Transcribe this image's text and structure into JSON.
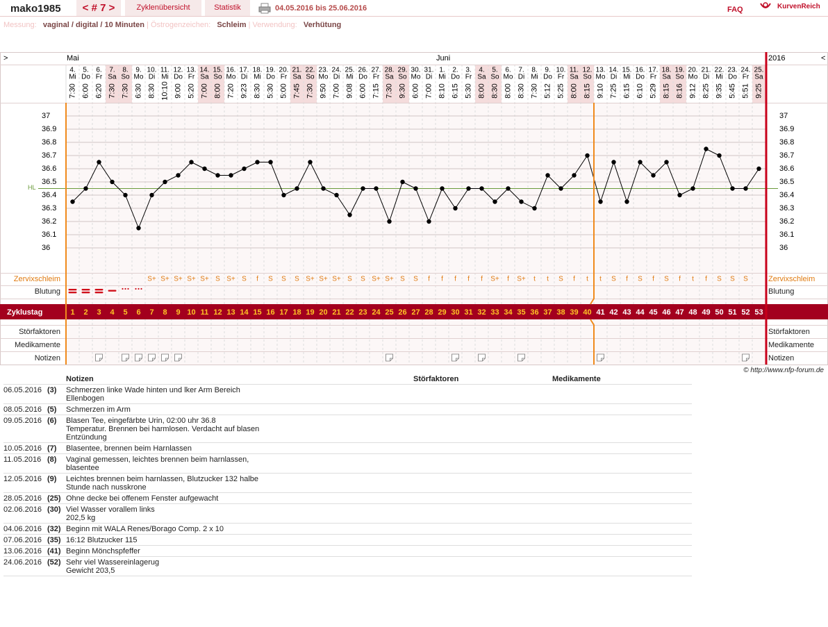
{
  "header": {
    "user": "mako1985",
    "cycle_nav": "< # 7 >",
    "tabs": [
      "Zyklenübersicht",
      "Statistik"
    ],
    "date_range": "04.05.2016 bis 25.06.2016",
    "faq": "FAQ",
    "logo": "KurvenReich"
  },
  "info": {
    "measure_label": "Messung:",
    "measure": "vaginal / digital / 10 Minuten",
    "separator": "|",
    "estrogen_label": "Östrogenzeichen:",
    "estrogen": "Schleim",
    "use_label": "Verwendung:",
    "use": "Verhütung"
  },
  "chart_data": {
    "type": "line",
    "months": [
      "Mai",
      "Juni"
    ],
    "year": "2016",
    "nav_left": ">",
    "nav_right": "<",
    "days": [
      "4.",
      "5.",
      "6.",
      "7.",
      "8.",
      "9.",
      "10.",
      "11.",
      "12.",
      "13.",
      "14.",
      "15.",
      "16.",
      "17.",
      "18.",
      "19.",
      "20.",
      "21.",
      "22.",
      "23.",
      "24.",
      "25.",
      "26.",
      "27.",
      "28.",
      "29.",
      "30.",
      "31.",
      "1.",
      "2.",
      "3.",
      "4.",
      "5.",
      "6.",
      "7.",
      "8.",
      "9.",
      "10.",
      "11.",
      "12.",
      "13.",
      "14.",
      "15.",
      "16.",
      "17.",
      "18.",
      "19.",
      "20.",
      "21.",
      "22.",
      "23.",
      "24.",
      "25."
    ],
    "weekdays": [
      "Mi",
      "Do",
      "Fr",
      "Sa",
      "So",
      "Mo",
      "Di",
      "Mi",
      "Do",
      "Fr",
      "Sa",
      "So",
      "Mo",
      "Di",
      "Mi",
      "Do",
      "Fr",
      "Sa",
      "So",
      "Mo",
      "Di",
      "Mi",
      "Do",
      "Fr",
      "Sa",
      "So",
      "Mo",
      "Di",
      "Mi",
      "Do",
      "Fr",
      "Sa",
      "So",
      "Mo",
      "Di",
      "Mi",
      "Do",
      "Fr",
      "Sa",
      "So",
      "Mo",
      "Di",
      "Mi",
      "Do",
      "Fr",
      "Sa",
      "So",
      "Mo",
      "Di",
      "Mi",
      "Do",
      "Fr",
      "Sa"
    ],
    "times": [
      "7:30",
      "6:00",
      "6:20",
      "7:30",
      "7:30",
      "6:30",
      "8:30",
      "10:10",
      "9:00",
      "5:20",
      "7:00",
      "8:00",
      "7:20",
      "9:23",
      "8:30",
      "5:30",
      "5:00",
      "7:45",
      "7:30",
      "9:50",
      "7:00",
      "9:08",
      "6:00",
      "7:15",
      "7:30",
      "9:30",
      "6:00",
      "7:00",
      "8:10",
      "6:15",
      "5:30",
      "8:00",
      "8:30",
      "8:00",
      "8:30",
      "7:30",
      "5:12",
      "5:25",
      "8:00",
      "8:15",
      "9:10",
      "7:25",
      "6:15",
      "6:10",
      "5:29",
      "8:15",
      "8:16",
      "9:12",
      "8:25",
      "9:35",
      "5:45",
      "5:51",
      "9:25"
    ],
    "values": [
      36.35,
      36.45,
      36.65,
      36.5,
      36.4,
      36.15,
      36.4,
      36.5,
      36.55,
      36.65,
      36.6,
      36.55,
      36.55,
      36.6,
      36.65,
      36.65,
      36.4,
      36.45,
      36.65,
      36.45,
      36.4,
      36.25,
      36.45,
      36.45,
      36.2,
      36.5,
      36.45,
      36.2,
      36.45,
      36.3,
      36.45,
      36.45,
      36.35,
      36.45,
      36.35,
      36.3,
      36.55,
      36.45,
      36.55,
      36.7,
      36.35,
      36.65,
      36.35,
      36.65,
      36.55,
      36.65,
      36.4,
      36.45,
      36.75,
      36.7,
      36.45,
      36.45,
      36.6
    ],
    "color": "#000000",
    "ylim": [
      35.8,
      37.1
    ],
    "yticks": [
      36,
      36.1,
      36.2,
      36.3,
      36.4,
      36.5,
      36.6,
      36.7,
      36.8,
      36.9,
      37
    ],
    "hl": {
      "label": "HL",
      "value": 36.45,
      "color": "#6a9a3a"
    },
    "cervix": [
      null,
      null,
      null,
      null,
      null,
      null,
      "S+",
      "S+",
      "S+",
      "S+",
      "S+",
      "S",
      "S+",
      "S",
      "f",
      "S",
      "S",
      "S",
      "S+",
      "S+",
      "S+",
      "S",
      "S",
      "S+",
      "S+",
      "S",
      "S",
      "f",
      "f",
      "f",
      "f",
      "f",
      "S+",
      "f",
      "S+",
      "t",
      "t",
      "S",
      "f",
      "t",
      "t",
      "S",
      "f",
      "S",
      "f",
      "S",
      "f",
      "t",
      "f",
      "S",
      "S",
      "S",
      null
    ],
    "cycle_days": [
      1,
      2,
      3,
      4,
      5,
      6,
      7,
      8,
      9,
      10,
      11,
      12,
      13,
      14,
      15,
      16,
      17,
      18,
      19,
      20,
      21,
      22,
      23,
      24,
      25,
      26,
      27,
      28,
      29,
      30,
      31,
      32,
      33,
      34,
      35,
      36,
      37,
      38,
      39,
      40,
      41,
      42,
      43,
      44,
      45,
      46,
      47,
      48,
      49,
      50,
      51,
      52,
      53
    ],
    "row_labels": {
      "cervix": "Zervixschleim",
      "bleeding": "Blutung",
      "cycle_day": "Zyklustag",
      "disturbances": "Störfaktoren",
      "medication": "Medikamente",
      "notes": "Notizen"
    }
  },
  "copyright": "© http://www.nfp-forum.de",
  "notes_table": {
    "headers": [
      "Notizen",
      "Störfaktoren",
      "Medikamente"
    ],
    "rows": [
      [
        "06.05.2016",
        "(3)",
        "Schmerzen linke Wade hinten und lker Arm Bereich\nEllenbogen"
      ],
      [
        "08.05.2016",
        "(5)",
        "Schmerzen im Arm"
      ],
      [
        "09.05.2016",
        "(6)",
        "Blasen Tee, eingefärbte Urin, 02:00 uhr 36.8\nTemperatur. Brennen bei harmlosen.  Verdacht auf blasen\nEntzündung"
      ],
      [
        "10.05.2016",
        "(7)",
        "Blasentee, brennen beim Harnlassen"
      ],
      [
        "11.05.2016",
        "(8)",
        "Vaginal gemessen, leichtes brennen beim harnlassen,\nblasentee"
      ],
      [
        "12.05.2016",
        "(9)",
        "Leichtes brennen beim harnlassen, Blutzucker 132 halbe\nStunde nach nusskrone"
      ],
      [
        "28.05.2016",
        "(25)",
        "Ohne decke bei offenem Fenster aufgewacht"
      ],
      [
        "02.06.2016",
        "(30)",
        "Viel Wasser vorallem links\n202,5 kg"
      ],
      [
        "04.06.2016",
        "(32)",
        "Beginn  mit  WALA Renes/Borago Comp. 2 x 10"
      ],
      [
        "07.06.2016",
        "(35)",
        "16:12 Blutzucker 115"
      ],
      [
        "13.06.2016",
        "(41)",
        "Beginn Mönchspfeffer"
      ],
      [
        "24.06.2016",
        "(52)",
        "Sehr viel Wassereinlagerug\nGewicht 203,5"
      ]
    ]
  }
}
